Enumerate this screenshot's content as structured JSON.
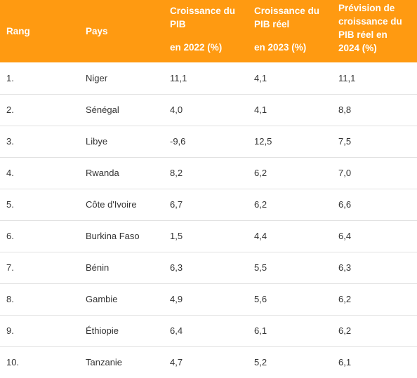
{
  "header": {
    "rank": "Rang",
    "country": "Pays",
    "growth_2022_line1": "Croissance du",
    "growth_2022_line2": "PIB",
    "growth_2022_line3": "en 2022 (%)",
    "growth_2023_line1": "Croissance du",
    "growth_2023_line2": "PIB réel",
    "growth_2023_line3": "en 2023 (%)",
    "forecast_2024_line1": "Prévision de",
    "forecast_2024_line2": "croissance du",
    "forecast_2024_line3": "PIB réel en",
    "forecast_2024_line4": "2024 (%)"
  },
  "colors": {
    "header_bg": "#ff9a11",
    "header_text": "#ffffff",
    "row_divider": "#e2e2e2"
  },
  "rows": [
    {
      "rank": "1.",
      "country": "Niger",
      "g2022": "11,1",
      "g2023": "4,1",
      "g2024": "11,1"
    },
    {
      "rank": "2.",
      "country": "Sénégal",
      "g2022": "4,0",
      "g2023": "4,1",
      "g2024": "8,8"
    },
    {
      "rank": "3.",
      "country": "Libye",
      "g2022": "-9,6",
      "g2023": "12,5",
      "g2024": "7,5"
    },
    {
      "rank": "4.",
      "country": "Rwanda",
      "g2022": "8,2",
      "g2023": "6,2",
      "g2024": "7,0"
    },
    {
      "rank": "5.",
      "country": "Côte d'Ivoire",
      "g2022": "6,7",
      "g2023": "6,2",
      "g2024": "6,6"
    },
    {
      "rank": "6.",
      "country": "Burkina Faso",
      "g2022": "1,5",
      "g2023": "4,4",
      "g2024": "6,4"
    },
    {
      "rank": "7.",
      "country": "Bénin",
      "g2022": "6,3",
      "g2023": "5,5",
      "g2024": "6,3"
    },
    {
      "rank": "8.",
      "country": "Gambie",
      "g2022": "4,9",
      "g2023": "5,6",
      "g2024": "6,2"
    },
    {
      "rank": "9.",
      "country": "Éthiopie",
      "g2022": "6,4",
      "g2023": "6,1",
      "g2024": "6,2"
    },
    {
      "rank": "10.",
      "country": "Tanzanie",
      "g2022": "4,7",
      "g2023": "5,2",
      "g2024": "6,1"
    }
  ]
}
